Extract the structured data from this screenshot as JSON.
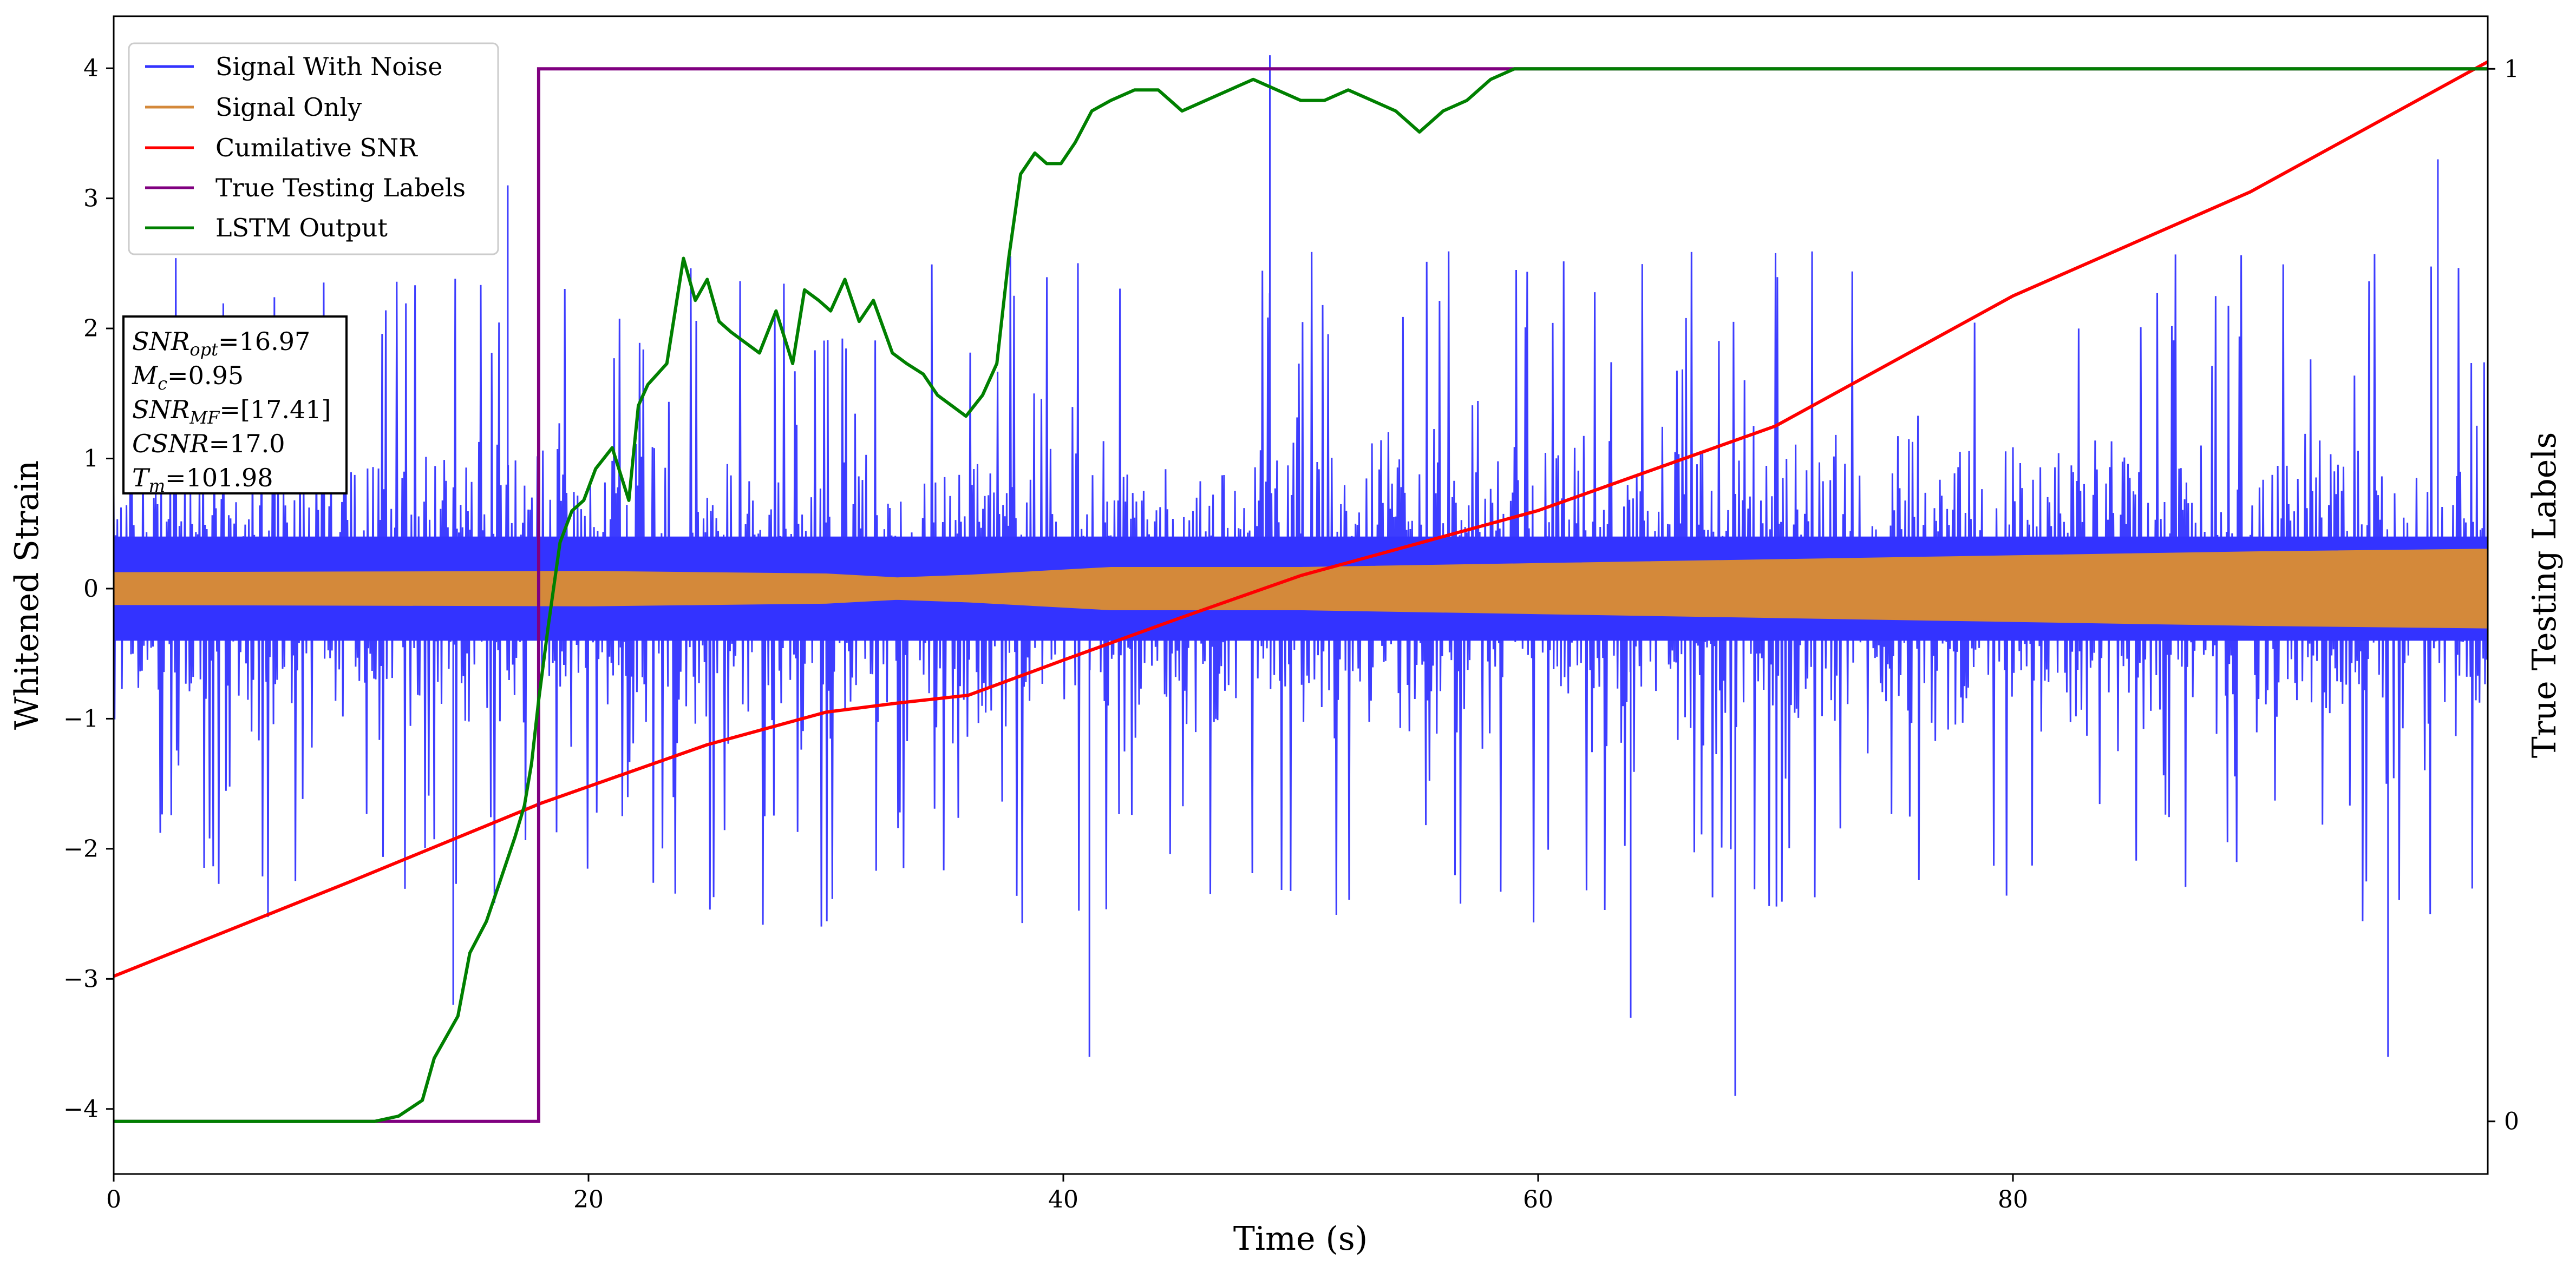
{
  "chart_data": {
    "type": "line",
    "xlabel": "Time (s)",
    "ylabel": "Whitened Strain",
    "y2label": "True Testing Labels",
    "xlim": [
      0,
      100
    ],
    "ylim": [
      -4.5,
      4.4
    ],
    "y2lim": [
      -0.05,
      1.05
    ],
    "xticks": [
      0,
      20,
      40,
      60,
      80
    ],
    "yticks": [
      -4,
      -3,
      -2,
      -1,
      0,
      1,
      2,
      3,
      4
    ],
    "y2ticks": [
      0,
      1
    ],
    "grid": false,
    "legend_position": "top-left",
    "series": [
      {
        "name": "Signal With Noise",
        "color": "#3333ff",
        "axis": "left",
        "kind": "noise",
        "typical_peak": 2.3,
        "noise_envelope": [
          [
            0,
            2.3
          ],
          [
            100,
            2.3
          ]
        ],
        "extreme_peaks": [
          [
            48.7,
            4.1
          ],
          [
            68.3,
            -3.9
          ],
          [
            41.1,
            -3.6
          ],
          [
            95.8,
            -3.6
          ],
          [
            63.9,
            -3.3
          ],
          [
            97.9,
            3.3
          ],
          [
            14.3,
            -3.2
          ],
          [
            16.6,
            3.1
          ]
        ]
      },
      {
        "name": "Signal Only",
        "color": "#d4893a",
        "axis": "left",
        "kind": "envelope",
        "envelope": [
          [
            0,
            0.12
          ],
          [
            20,
            0.13
          ],
          [
            30,
            0.11
          ],
          [
            33,
            0.08
          ],
          [
            36,
            0.1
          ],
          [
            42,
            0.16
          ],
          [
            50,
            0.16
          ],
          [
            60,
            0.19
          ],
          [
            70,
            0.22
          ],
          [
            80,
            0.25
          ],
          [
            90,
            0.28
          ],
          [
            100,
            0.3
          ]
        ]
      },
      {
        "name": "Cumilative SNR",
        "color": "#ff0000",
        "axis": "left",
        "x": [
          0,
          10,
          18,
          25,
          30,
          33,
          36,
          40,
          45,
          50,
          55,
          60,
          70,
          80,
          90,
          100
        ],
        "y": [
          -2.98,
          -2.25,
          -1.65,
          -1.2,
          -0.95,
          -0.88,
          -0.82,
          -0.55,
          -0.22,
          0.1,
          0.35,
          0.6,
          1.25,
          2.25,
          3.05,
          4.05
        ]
      },
      {
        "name": "True Testing Labels",
        "color": "#800080",
        "axis": "right",
        "x": [
          0,
          17.9,
          17.9,
          100
        ],
        "y": [
          0,
          0,
          1,
          1
        ]
      },
      {
        "name": "LSTM Output",
        "color": "#008000",
        "axis": "right",
        "x": [
          0,
          11,
          12,
          13,
          13.5,
          14.5,
          15,
          15.7,
          16.3,
          16.9,
          17.3,
          17.6,
          17.9,
          18.3,
          18.8,
          19.3,
          19.8,
          20.3,
          21,
          21.7,
          22.1,
          22.5,
          23.3,
          24,
          24.5,
          25,
          25.5,
          26,
          26.6,
          27.2,
          27.9,
          28.6,
          29.1,
          29.7,
          30.2,
          30.8,
          31.4,
          32,
          32.8,
          33.4,
          34.1,
          34.7,
          35.3,
          35.9,
          36.6,
          37.2,
          37.7,
          38.2,
          38.8,
          39.3,
          39.9,
          40.5,
          41.2,
          42,
          43,
          44,
          45,
          46,
          47,
          48,
          49,
          50,
          51,
          52,
          53,
          54,
          55,
          56,
          57,
          58,
          59,
          60,
          61,
          62,
          63,
          64,
          66,
          70,
          80,
          90,
          100
        ],
        "y": [
          0,
          0,
          0.005,
          0.02,
          0.06,
          0.1,
          0.16,
          0.19,
          0.23,
          0.27,
          0.3,
          0.34,
          0.4,
          0.47,
          0.55,
          0.58,
          0.59,
          0.62,
          0.64,
          0.59,
          0.68,
          0.7,
          0.72,
          0.82,
          0.78,
          0.8,
          0.76,
          0.75,
          0.74,
          0.73,
          0.77,
          0.72,
          0.79,
          0.78,
          0.77,
          0.8,
          0.76,
          0.78,
          0.73,
          0.72,
          0.71,
          0.69,
          0.68,
          0.67,
          0.69,
          0.72,
          0.82,
          0.9,
          0.92,
          0.91,
          0.91,
          0.93,
          0.96,
          0.97,
          0.98,
          0.98,
          0.96,
          0.97,
          0.98,
          0.99,
          0.98,
          0.97,
          0.97,
          0.98,
          0.97,
          0.96,
          0.94,
          0.96,
          0.97,
          0.99,
          1.0,
          1.0,
          1.0,
          1.0,
          1.0,
          1.0,
          1.0,
          1.0,
          1.0,
          1.0,
          1.0
        ]
      }
    ]
  },
  "info_box": {
    "lines": [
      {
        "main": "SNR",
        "sub": "opt",
        "rest": "=16.97"
      },
      {
        "main": "M",
        "sub": "c",
        "rest": "=0.95"
      },
      {
        "main": "SNR",
        "sub": "MF",
        "rest": "=[17.41]"
      },
      {
        "main": "CSNR",
        "sub": "",
        "rest": "=17.0"
      },
      {
        "main": "T",
        "sub": "m",
        "rest": "=101.98"
      }
    ]
  }
}
